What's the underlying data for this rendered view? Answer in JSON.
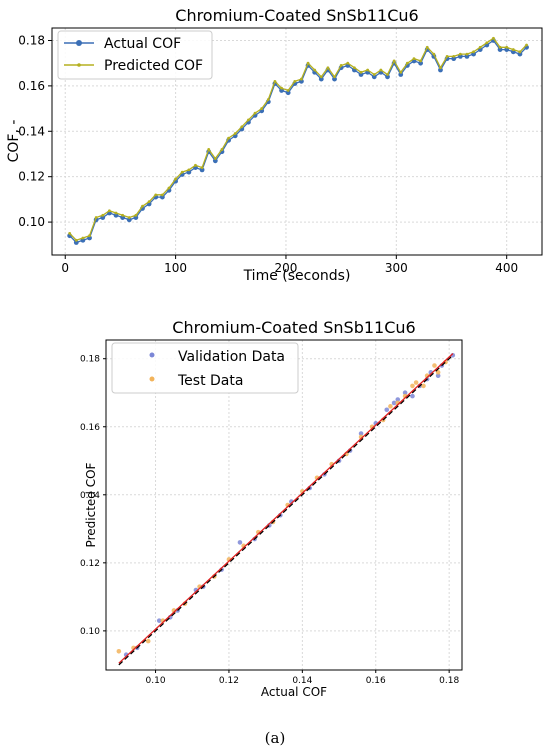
{
  "chart_data": [
    {
      "type": "line",
      "title": "Chromium-Coated SnSb11Cu6",
      "xlabel": "Time (seconds)",
      "ylabel": "COF, -",
      "xlim": [
        -12,
        432
      ],
      "ylim": [
        0.0855,
        0.1855
      ],
      "xticks": [
        0,
        100,
        200,
        300,
        400
      ],
      "xtick_labels": [
        "0",
        "100",
        "200",
        "300",
        "400"
      ],
      "yticks": [
        0.1,
        0.12,
        0.14,
        0.16,
        0.18
      ],
      "ytick_labels": [
        "0.10",
        "0.12",
        "0.14",
        "0.16",
        "0.18"
      ],
      "grid": true,
      "legend_position": "top-left",
      "series": [
        {
          "name": "Actual COF",
          "color": "#3b6fb6",
          "marker": "circle",
          "x": [
            4,
            10,
            16,
            22,
            28,
            34,
            40,
            46,
            52,
            58,
            64,
            70,
            76,
            82,
            88,
            94,
            100,
            106,
            112,
            118,
            124,
            130,
            136,
            142,
            148,
            154,
            160,
            166,
            172,
            178,
            184,
            190,
            196,
            202,
            208,
            214,
            220,
            226,
            232,
            238,
            244,
            250,
            256,
            262,
            268,
            274,
            280,
            286,
            292,
            298,
            304,
            310,
            316,
            322,
            328,
            334,
            340,
            346,
            352,
            358,
            364,
            370,
            376,
            382,
            388,
            394,
            400,
            406,
            412,
            418
          ],
          "y": [
            0.094,
            0.091,
            0.092,
            0.093,
            0.101,
            0.102,
            0.104,
            0.103,
            0.102,
            0.101,
            0.102,
            0.106,
            0.108,
            0.111,
            0.111,
            0.114,
            0.118,
            0.121,
            0.122,
            0.124,
            0.123,
            0.131,
            0.127,
            0.131,
            0.136,
            0.138,
            0.141,
            0.144,
            0.147,
            0.149,
            0.153,
            0.161,
            0.158,
            0.157,
            0.161,
            0.162,
            0.169,
            0.166,
            0.163,
            0.167,
            0.163,
            0.168,
            0.169,
            0.167,
            0.165,
            0.166,
            0.164,
            0.166,
            0.164,
            0.17,
            0.165,
            0.169,
            0.171,
            0.17,
            0.176,
            0.173,
            0.167,
            0.172,
            0.172,
            0.173,
            0.173,
            0.174,
            0.176,
            0.178,
            0.18,
            0.176,
            0.176,
            0.175,
            0.174,
            0.177
          ]
        },
        {
          "name": "Predicted COF",
          "color": "#b5b020",
          "marker": "small-circle",
          "x": [
            4,
            10,
            16,
            22,
            28,
            34,
            40,
            46,
            52,
            58,
            64,
            70,
            76,
            82,
            88,
            94,
            100,
            106,
            112,
            118,
            124,
            130,
            136,
            142,
            148,
            154,
            160,
            166,
            172,
            178,
            184,
            190,
            196,
            202,
            208,
            214,
            220,
            226,
            232,
            238,
            244,
            250,
            256,
            262,
            268,
            274,
            280,
            286,
            292,
            298,
            304,
            310,
            316,
            322,
            328,
            334,
            340,
            346,
            352,
            358,
            364,
            370,
            376,
            382,
            388,
            394,
            400,
            406,
            412,
            418
          ],
          "y": [
            0.095,
            0.092,
            0.093,
            0.094,
            0.102,
            0.103,
            0.105,
            0.104,
            0.103,
            0.102,
            0.103,
            0.107,
            0.109,
            0.112,
            0.112,
            0.115,
            0.119,
            0.122,
            0.123,
            0.125,
            0.124,
            0.132,
            0.128,
            0.132,
            0.137,
            0.139,
            0.142,
            0.145,
            0.148,
            0.15,
            0.154,
            0.162,
            0.159,
            0.158,
            0.162,
            0.163,
            0.17,
            0.167,
            0.164,
            0.168,
            0.164,
            0.169,
            0.17,
            0.168,
            0.166,
            0.167,
            0.165,
            0.167,
            0.165,
            0.171,
            0.166,
            0.17,
            0.172,
            0.171,
            0.177,
            0.174,
            0.168,
            0.173,
            0.173,
            0.174,
            0.174,
            0.175,
            0.177,
            0.179,
            0.181,
            0.177,
            0.177,
            0.176,
            0.175,
            0.178
          ]
        }
      ]
    },
    {
      "type": "scatter",
      "title": "Chromium-Coated SnSb11Cu6",
      "xlabel": "Actual COF",
      "ylabel": "Predicted COF",
      "xlim": [
        0.0865,
        0.1835
      ],
      "ylim": [
        0.0885,
        0.1855
      ],
      "xticks": [
        0.1,
        0.12,
        0.14,
        0.16,
        0.18
      ],
      "xtick_labels": [
        "0.10",
        "0.12",
        "0.14",
        "0.16",
        "0.18"
      ],
      "yticks": [
        0.1,
        0.12,
        0.14,
        0.16,
        0.18
      ],
      "ytick_labels": [
        "0.10",
        "0.12",
        "0.14",
        "0.16",
        "0.18"
      ],
      "grid": true,
      "legend_position": "top-left",
      "reference_lines": [
        {
          "style": "dashed",
          "color": "#000000",
          "from": [
            0.09,
            0.09
          ],
          "to": [
            0.181,
            0.181
          ]
        },
        {
          "style": "solid",
          "color": "#e02020",
          "from": [
            0.09,
            0.0905
          ],
          "to": [
            0.181,
            0.1815
          ]
        }
      ],
      "series": [
        {
          "name": "Validation Data",
          "color": "#7b86d6",
          "x": [
            0.092,
            0.095,
            0.101,
            0.104,
            0.106,
            0.111,
            0.113,
            0.118,
            0.123,
            0.127,
            0.131,
            0.134,
            0.137,
            0.142,
            0.146,
            0.15,
            0.153,
            0.156,
            0.16,
            0.163,
            0.165,
            0.166,
            0.168,
            0.17,
            0.172,
            0.174,
            0.175,
            0.177,
            0.178,
            0.181
          ],
          "y": [
            0.093,
            0.095,
            0.103,
            0.104,
            0.106,
            0.112,
            0.113,
            0.118,
            0.126,
            0.127,
            0.131,
            0.134,
            0.138,
            0.142,
            0.146,
            0.15,
            0.153,
            0.158,
            0.161,
            0.165,
            0.167,
            0.168,
            0.17,
            0.169,
            0.172,
            0.174,
            0.176,
            0.175,
            0.178,
            0.181
          ]
        },
        {
          "name": "Test Data",
          "color": "#f2b35a",
          "x": [
            0.09,
            0.094,
            0.098,
            0.102,
            0.105,
            0.108,
            0.112,
            0.116,
            0.12,
            0.124,
            0.128,
            0.132,
            0.136,
            0.14,
            0.144,
            0.148,
            0.152,
            0.156,
            0.159,
            0.162,
            0.164,
            0.166,
            0.168,
            0.17,
            0.171,
            0.173,
            0.174,
            0.176,
            0.177,
            0.179
          ],
          "y": [
            0.094,
            0.095,
            0.097,
            0.103,
            0.106,
            0.108,
            0.113,
            0.116,
            0.121,
            0.125,
            0.129,
            0.132,
            0.137,
            0.141,
            0.145,
            0.149,
            0.152,
            0.157,
            0.16,
            0.162,
            0.166,
            0.167,
            0.169,
            0.172,
            0.173,
            0.172,
            0.175,
            0.178,
            0.176,
            0.179
          ]
        }
      ]
    }
  ],
  "caption": "(a)"
}
